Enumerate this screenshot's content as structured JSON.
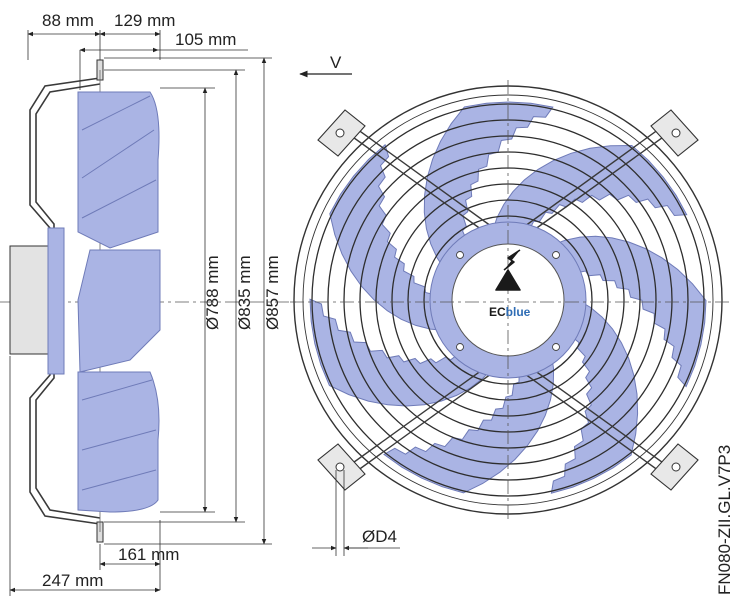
{
  "dimensions": {
    "side_view": {
      "d88": "88 mm",
      "d129": "129 mm",
      "d105": "105 mm",
      "d788": "Ø788 mm",
      "d835": "Ø835 mm",
      "d857": "Ø857 mm",
      "d161": "161 mm",
      "d247": "247 mm"
    },
    "front_view": {
      "view_arrow": "V",
      "bolt_hole": "ØD4"
    }
  },
  "logo": {
    "ec": "EC",
    "blue": "blue"
  },
  "model_code": "FN080-ZII.GL.V7P3",
  "colors": {
    "blade_fill": "#aab4e4",
    "blade_stroke": "#6f7bb8",
    "line": "#3a3a3a",
    "centerline": "#555555",
    "accent_blue": "#2f6db5"
  }
}
